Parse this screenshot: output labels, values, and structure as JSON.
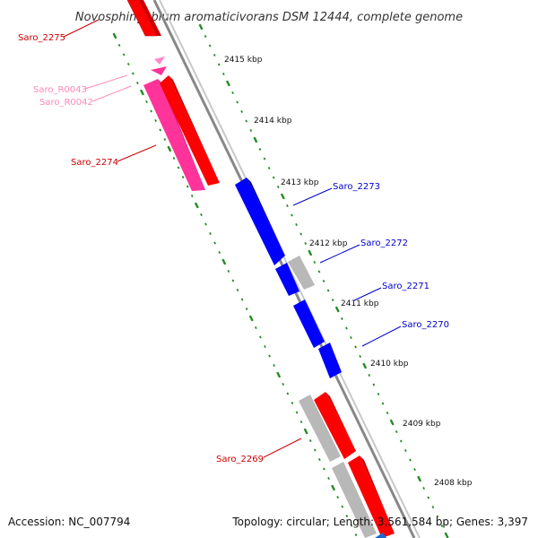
{
  "title": "Novosphingobium aromaticivorans DSM 12444, complete genome",
  "accession": "Accession: NC_007794",
  "summary": "Topology: circular; Length: 3,561,584 bp; Genes: 3,397",
  "colors": {
    "forward_gene": "#ff0000",
    "reverse_gene": "#0000ff",
    "rna_gene": "#ff3399",
    "pseudo_gene": "#b8b8b8",
    "tick": "#228b22",
    "backbone": "#888888",
    "label_forward": "#cc0000",
    "label_reverse": "#0000cc",
    "label_rna": "#ff88bb"
  },
  "tick_labels": [
    "2415 kbp",
    "2414 kbp",
    "2413 kbp",
    "2412 kbp",
    "2411 kbp",
    "2410 kbp",
    "2409 kbp",
    "2408 kbp"
  ],
  "gene_labels": [
    {
      "name": "Saro_2275",
      "type": "forward"
    },
    {
      "name": "Saro_R0043",
      "type": "rna"
    },
    {
      "name": "Saro_R0042",
      "type": "rna"
    },
    {
      "name": "Saro_2274",
      "type": "forward"
    },
    {
      "name": "Saro_2273",
      "type": "reverse"
    },
    {
      "name": "Saro_2272",
      "type": "reverse"
    },
    {
      "name": "Saro_2271",
      "type": "reverse"
    },
    {
      "name": "Saro_2270",
      "type": "reverse"
    },
    {
      "name": "Saro_2269",
      "type": "forward"
    }
  ]
}
